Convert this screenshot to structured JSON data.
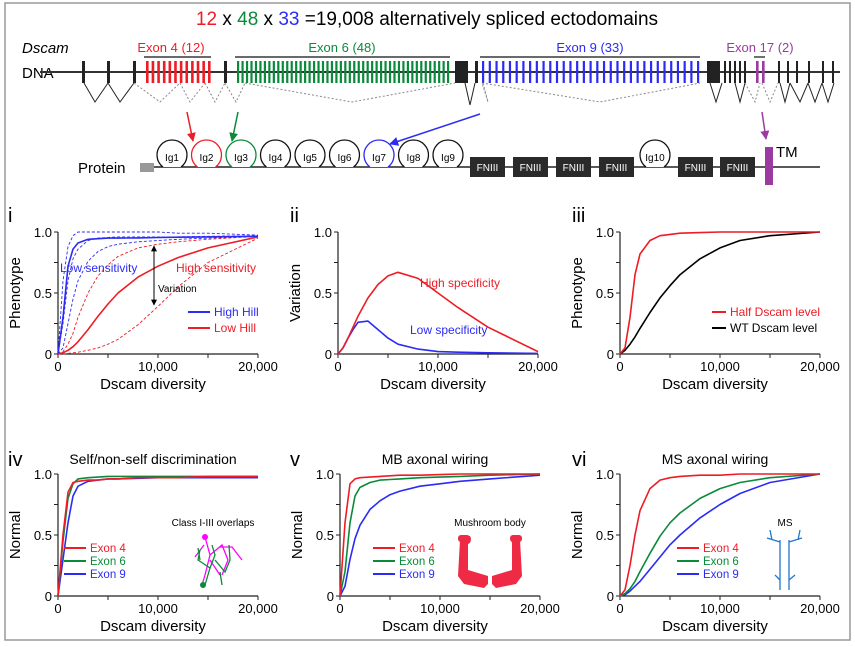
{
  "header": {
    "n1": "12",
    "x1": " x ",
    "n2": "48",
    "x2": " x ",
    "n3": "33",
    "rest": " =19,008 alternatively spliced ectodomains"
  },
  "gene": {
    "name": "Dscam",
    "dna_label": "DNA",
    "protein_label": "Protein",
    "exons": [
      {
        "label": "Exon 4 (12)",
        "count": 12,
        "color": "#ee1c25"
      },
      {
        "label": "Exon 6 (48)",
        "count": 48,
        "color": "#0a8a3a"
      },
      {
        "label": "Exon 9 (33)",
        "count": 33,
        "color": "#2b2bf5"
      },
      {
        "label": "Exon 17 (2)",
        "count": 2,
        "color": "#9b3aa0"
      }
    ],
    "ig_domains": [
      "Ig1",
      "Ig2",
      "Ig3",
      "Ig4",
      "Ig5",
      "Ig6",
      "Ig7",
      "Ig8",
      "Ig9"
    ],
    "ig10": "Ig10",
    "fn_label": "FNIII",
    "tm_label": "TM"
  },
  "chart_data": [
    {
      "panel": "i",
      "type": "line",
      "title": "",
      "xlabel": "Dscam diversity",
      "ylabel": "Phenotype",
      "xlim": [
        0,
        20000
      ],
      "ylim": [
        0,
        1
      ],
      "xticks": [
        "0",
        "10,000",
        "20,000"
      ],
      "yticks": [
        "0",
        "0.5",
        "1.0"
      ],
      "x": [
        0,
        500,
        1000,
        1500,
        2000,
        3000,
        4000,
        5000,
        6000,
        8000,
        10000,
        12000,
        15000,
        20000
      ],
      "series": [
        {
          "name": "High Hill",
          "color": "#2b2bf5",
          "dashed": false,
          "values": [
            0,
            0.3,
            0.72,
            0.86,
            0.91,
            0.94,
            0.945,
            0.95,
            0.95,
            0.952,
            0.955,
            0.957,
            0.96,
            0.965
          ]
        },
        {
          "name": "Low Hill",
          "color": "#ee1c25",
          "dashed": false,
          "values": [
            0,
            0.01,
            0.03,
            0.06,
            0.1,
            0.2,
            0.31,
            0.41,
            0.5,
            0.63,
            0.72,
            0.79,
            0.87,
            0.96
          ]
        },
        {
          "name": "",
          "color": "#2b2bf5",
          "dashed": true,
          "values": [
            0,
            0.6,
            0.88,
            0.97,
            1.0,
            1.0,
            1.0,
            1.0,
            1.0,
            1.0,
            1.0,
            0.99,
            0.99,
            0.975
          ]
        },
        {
          "name": "",
          "color": "#2b2bf5",
          "dashed": true,
          "values": [
            0,
            0.25,
            0.6,
            0.78,
            0.86,
            0.93,
            0.95,
            0.955,
            0.96,
            0.96,
            0.96,
            0.96,
            0.965,
            0.97
          ]
        },
        {
          "name": "",
          "color": "#2b2bf5",
          "dashed": true,
          "values": [
            0,
            0.05,
            0.25,
            0.45,
            0.6,
            0.76,
            0.84,
            0.88,
            0.9,
            0.92,
            0.93,
            0.94,
            0.95,
            0.965
          ]
        },
        {
          "name": "",
          "color": "#ee1c25",
          "dashed": true,
          "values": [
            0,
            0.02,
            0.08,
            0.17,
            0.3,
            0.5,
            0.64,
            0.73,
            0.8,
            0.87,
            0.9,
            0.92,
            0.94,
            0.965
          ]
        },
        {
          "name": "",
          "color": "#ee1c25",
          "dashed": true,
          "values": [
            0,
            0,
            0.005,
            0.01,
            0.015,
            0.03,
            0.05,
            0.08,
            0.12,
            0.24,
            0.39,
            0.55,
            0.75,
            0.95
          ]
        }
      ],
      "annotations": [
        "Low sensitivity",
        "High sensitivity",
        "Variation"
      ],
      "legend": [
        "High Hill",
        "Low Hill"
      ]
    },
    {
      "panel": "ii",
      "type": "line",
      "title": "",
      "xlabel": "Dscam diversity",
      "ylabel": "Variation",
      "xlim": [
        0,
        20000
      ],
      "ylim": [
        0,
        1
      ],
      "xticks": [
        "0",
        "10,000",
        "20,000"
      ],
      "yticks": [
        "0",
        "0.5",
        "1.0"
      ],
      "x": [
        0,
        500,
        1000,
        1500,
        2000,
        3000,
        4000,
        5000,
        6000,
        8000,
        10000,
        12000,
        15000,
        20000
      ],
      "series": [
        {
          "name": "High specificity",
          "color": "#ee1c25",
          "dashed": false,
          "values": [
            0,
            0.05,
            0.13,
            0.22,
            0.31,
            0.46,
            0.57,
            0.64,
            0.67,
            0.62,
            0.5,
            0.38,
            0.22,
            0.02
          ]
        },
        {
          "name": "Low specificity",
          "color": "#2b2bf5",
          "dashed": false,
          "values": [
            0,
            0.05,
            0.13,
            0.2,
            0.26,
            0.27,
            0.2,
            0.13,
            0.08,
            0.04,
            0.02,
            0.015,
            0.01,
            0.005
          ]
        }
      ],
      "annotations": [
        "High specificity",
        "Low specificity"
      ]
    },
    {
      "panel": "iii",
      "type": "line",
      "title": "",
      "xlabel": "Dscam diversity",
      "ylabel": "Phenotype",
      "xlim": [
        0,
        20000
      ],
      "ylim": [
        0,
        1
      ],
      "xticks": [
        "0",
        "10,000",
        "20,000"
      ],
      "yticks": [
        "0",
        "0.5",
        "1.0"
      ],
      "x": [
        0,
        500,
        1000,
        1500,
        2000,
        3000,
        4000,
        5000,
        6000,
        8000,
        10000,
        12000,
        15000,
        20000
      ],
      "series": [
        {
          "name": "Half Dscam level",
          "color": "#ee1c25",
          "dashed": false,
          "values": [
            0,
            0.05,
            0.3,
            0.65,
            0.82,
            0.93,
            0.97,
            0.98,
            0.99,
            0.995,
            1,
            1,
            1,
            1
          ]
        },
        {
          "name": "WT Dscam level",
          "color": "#000000",
          "dashed": false,
          "values": [
            0,
            0.03,
            0.08,
            0.14,
            0.21,
            0.34,
            0.46,
            0.56,
            0.65,
            0.78,
            0.87,
            0.93,
            0.97,
            1
          ]
        }
      ],
      "legend": [
        "Half Dscam level",
        "WT Dscam level"
      ]
    },
    {
      "panel": "iv",
      "type": "line",
      "title": "Self/non-self discrimination",
      "xlabel": "Dscam diversity",
      "ylabel": "Normal",
      "xlim": [
        0,
        20000
      ],
      "ylim": [
        0,
        1
      ],
      "xticks": [
        "0",
        "10,000",
        "20,000"
      ],
      "yticks": [
        "0",
        "0.5",
        "1.0"
      ],
      "x": [
        0,
        500,
        1000,
        1500,
        2000,
        3000,
        4000,
        5000,
        6000,
        8000,
        10000,
        12000,
        15000,
        20000
      ],
      "series": [
        {
          "name": "Exon 4",
          "color": "#ee1c25",
          "dashed": false,
          "values": [
            0,
            0.5,
            0.85,
            0.93,
            0.94,
            0.95,
            0.95,
            0.96,
            0.96,
            0.97,
            0.97,
            0.97,
            0.98,
            0.98
          ]
        },
        {
          "name": "Exon 6",
          "color": "#0a8a3a",
          "dashed": false,
          "values": [
            0,
            0.45,
            0.8,
            0.92,
            0.96,
            0.97,
            0.975,
            0.98,
            0.98,
            0.98,
            0.98,
            0.98,
            0.98,
            0.98
          ]
        },
        {
          "name": "Exon 9",
          "color": "#2b2bf5",
          "dashed": false,
          "values": [
            0,
            0.3,
            0.6,
            0.82,
            0.9,
            0.94,
            0.95,
            0.96,
            0.96,
            0.965,
            0.97,
            0.97,
            0.97,
            0.97
          ]
        }
      ],
      "legend": [
        "Exon 4",
        "Exon 6",
        "Exon 9"
      ],
      "inset_label": "Class I-III overlaps"
    },
    {
      "panel": "v",
      "type": "line",
      "title": "MB axonal wiring",
      "xlabel": "Dscam diversity",
      "ylabel": "Normal",
      "xlim": [
        0,
        20000
      ],
      "ylim": [
        0,
        1
      ],
      "xticks": [
        "0",
        "10,000",
        "20,000"
      ],
      "yticks": [
        "0",
        "0.5",
        "1.0"
      ],
      "x": [
        0,
        500,
        1000,
        1500,
        2000,
        3000,
        4000,
        5000,
        6000,
        8000,
        10000,
        12000,
        15000,
        20000
      ],
      "series": [
        {
          "name": "Exon 4",
          "color": "#ee1c25",
          "dashed": false,
          "values": [
            0,
            0.6,
            0.92,
            0.96,
            0.97,
            0.975,
            0.98,
            0.985,
            0.99,
            0.99,
            0.995,
            1,
            1,
            1
          ]
        },
        {
          "name": "Exon 6",
          "color": "#0a8a3a",
          "dashed": false,
          "values": [
            0,
            0.2,
            0.6,
            0.82,
            0.89,
            0.93,
            0.95,
            0.955,
            0.96,
            0.97,
            0.975,
            0.98,
            0.99,
            1
          ]
        },
        {
          "name": "Exon 9",
          "color": "#2b2bf5",
          "dashed": false,
          "values": [
            0,
            0.08,
            0.3,
            0.47,
            0.58,
            0.71,
            0.78,
            0.83,
            0.86,
            0.9,
            0.92,
            0.94,
            0.96,
            0.99
          ]
        }
      ],
      "legend": [
        "Exon 4",
        "Exon 6",
        "Exon 9"
      ],
      "inset_label": "Mushroom body"
    },
    {
      "panel": "vi",
      "type": "line",
      "title": "MS axonal wiring",
      "xlabel": "Dscam diversity",
      "ylabel": "Normal",
      "xlim": [
        0,
        20000
      ],
      "ylim": [
        0,
        1
      ],
      "xticks": [
        "0",
        "10,000",
        "20,000"
      ],
      "yticks": [
        "0",
        "0.5",
        "1.0"
      ],
      "x": [
        0,
        500,
        1000,
        1500,
        2000,
        3000,
        4000,
        5000,
        6000,
        8000,
        10000,
        12000,
        15000,
        20000
      ],
      "series": [
        {
          "name": "Exon 4",
          "color": "#ee1c25",
          "dashed": false,
          "values": [
            0,
            0.05,
            0.25,
            0.5,
            0.7,
            0.88,
            0.95,
            0.97,
            0.98,
            0.99,
            0.99,
            1,
            1,
            1
          ]
        },
        {
          "name": "Exon 6",
          "color": "#0a8a3a",
          "dashed": false,
          "values": [
            0,
            0.02,
            0.06,
            0.12,
            0.2,
            0.35,
            0.49,
            0.6,
            0.68,
            0.8,
            0.88,
            0.93,
            0.97,
            1
          ]
        },
        {
          "name": "Exon 9",
          "color": "#2b2bf5",
          "dashed": false,
          "values": [
            0,
            0.01,
            0.04,
            0.08,
            0.12,
            0.22,
            0.32,
            0.42,
            0.5,
            0.64,
            0.75,
            0.84,
            0.93,
            1
          ]
        }
      ],
      "legend": [
        "Exon 4",
        "Exon 6",
        "Exon 9"
      ],
      "inset_label": "MS"
    }
  ]
}
